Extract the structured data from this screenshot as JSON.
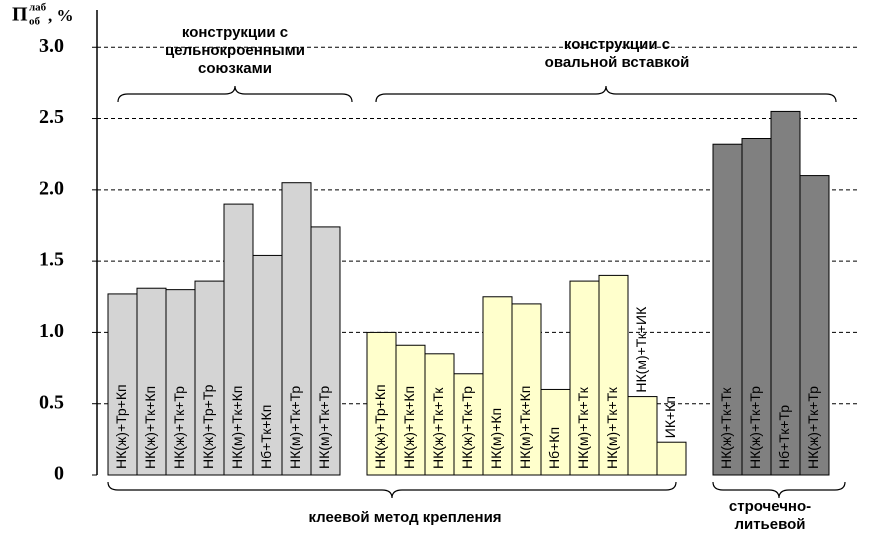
{
  "chart_data": {
    "type": "bar",
    "ylabel": "П",
    "ylabel_sup": "лаб",
    "ylabel_sub": "об",
    "ylabel_unit": ", %",
    "ylim": [
      0,
      3.1
    ],
    "yticks": [
      0,
      0.5,
      {
        "value": 1,
        "label": "1.0"
      },
      1.5,
      {
        "value": 2,
        "label": "2.0"
      },
      2.5,
      {
        "value": 3,
        "label": "3.0"
      }
    ],
    "grid": true,
    "groups": [
      {
        "color": "#d4d4d4",
        "categories": [
          "НК(ж)+Тр+Кп",
          "НК(ж)+Тк+Кп",
          "НК(ж)+Тк+Тр",
          "НК(ж)+Тр+Тр",
          "НК(м)+Тк+Кп",
          "Нб+Тк+Кп",
          "НК(м)+Тк+Тр",
          "НК(м)+Тк+Тр"
        ],
        "values": [
          1.27,
          1.31,
          1.3,
          1.36,
          1.9,
          1.54,
          2.05,
          1.74
        ]
      },
      {
        "color": "#ffffcc",
        "categories": [
          "НК(ж)+Тр+Кп",
          "НК(ж)+Тк+Кп",
          "НК(ж)+Тк+Тк",
          "НК(ж)+Тк+Тр",
          "НК(м)+Кп",
          "НК(м)+Тк+Кп",
          "Нб+Кп",
          "НК(м)+Тк+Тк",
          "НК(м)+Тк+Тк",
          "НК(м)+Тк+ИК",
          "ИК+Кп"
        ],
        "values": [
          1.0,
          0.91,
          0.85,
          0.71,
          1.25,
          1.2,
          0.6,
          1.36,
          1.4,
          0.55,
          0.23
        ]
      },
      {
        "color": "#808080",
        "categories": [
          "НК(ж)+Тк+Тк",
          "НК(ж)+Тк+Тр",
          "Нб+Тк+Тр",
          "НК(ж)+Тк+Тр"
        ],
        "values": [
          2.32,
          2.36,
          2.55,
          2.1
        ]
      }
    ],
    "annotations": {
      "top_left": [
        "конструкции с",
        "цельнокроенными",
        "союзками"
      ],
      "top_right": [
        "конструкции с",
        "овальной вставкой"
      ],
      "bottom_left": [
        "клеевой метод крепления"
      ],
      "bottom_right": [
        "строчечно-",
        "литьевой"
      ]
    }
  }
}
